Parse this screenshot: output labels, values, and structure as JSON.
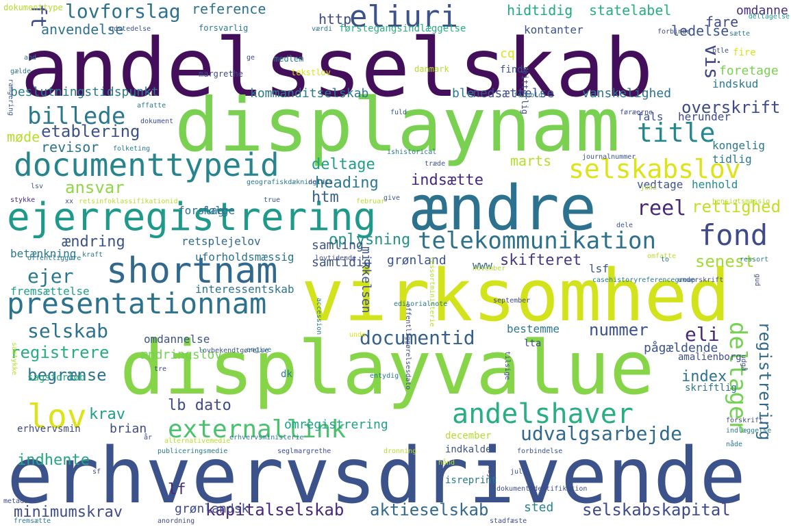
{
  "words": [
    {
      "text": "andelsselskab",
      "color": "#440f5a"
    },
    {
      "text": "displaynam",
      "color": "#7ad151"
    },
    {
      "text": "virksomhed",
      "color": "#d2e21b"
    },
    {
      "text": "displayvalue",
      "color": "#86d549"
    },
    {
      "text": "erhvervsdrivende",
      "color": "#3b528b"
    },
    {
      "text": "ændre",
      "color": "#2c728e"
    },
    {
      "text": "ejerregistrering",
      "color": "#1f9a8a"
    },
    {
      "text": "documenttypeid",
      "color": "#25848e"
    },
    {
      "text": "presentationnam",
      "color": "#2c718e"
    },
    {
      "text": "shortnam",
      "color": "#31688e"
    },
    {
      "text": "eliuri",
      "color": "#3b528b"
    },
    {
      "text": "selskabslov",
      "color": "#dde318"
    },
    {
      "text": "title",
      "color": "#23888e"
    },
    {
      "text": "fond",
      "color": "#3e4a89"
    },
    {
      "text": "telekommunikation",
      "color": "#2d708e"
    },
    {
      "text": "andelshaver",
      "color": "#28ae80"
    },
    {
      "text": "externallink",
      "color": "#4ac16d"
    },
    {
      "text": "lov",
      "color": "#dde318"
    },
    {
      "text": "billede",
      "color": "#2a788e"
    },
    {
      "text": "documentid",
      "color": "#355f8d"
    },
    {
      "text": "lovforslag",
      "color": "#2c728e"
    },
    {
      "text": "ft",
      "color": "#3e4a89"
    },
    {
      "text": "reel",
      "color": "#482878"
    },
    {
      "text": "deltager",
      "color": "#75d054"
    },
    {
      "text": "registrering",
      "color": "#31688e"
    },
    {
      "text": "udvalgsarbejde",
      "color": "#31688e"
    },
    {
      "text": "eli",
      "color": "#482878"
    },
    {
      "text": "vis",
      "color": "#414487"
    },
    {
      "text": "selskab",
      "color": "#2c728e"
    },
    {
      "text": "ejer",
      "color": "#2a788e"
    },
    {
      "text": "etablering",
      "color": "#3b528b"
    },
    {
      "text": "ansvar",
      "color": "#8fd744"
    },
    {
      "text": "begrænse",
      "color": "#2c728e"
    },
    {
      "text": "overskrift",
      "color": "#3e4a89"
    },
    {
      "text": "rettighed",
      "color": "#c2df23"
    },
    {
      "text": "senest",
      "color": "#a2da37"
    },
    {
      "text": "nummer",
      "color": "#3b528b"
    },
    {
      "text": "kapitalselskab",
      "color": "#482878"
    },
    {
      "text": "aktieselskab",
      "color": "#31688e"
    },
    {
      "text": "selskabskapital",
      "color": "#3e4a89"
    },
    {
      "text": "registrere",
      "color": "#27ad81"
    },
    {
      "text": "indhente",
      "color": "#22a785"
    },
    {
      "text": "krav",
      "color": "#1f9e89"
    },
    {
      "text": "lb dato",
      "color": "#3e4a89"
    },
    {
      "text": "lf",
      "color": "#482878"
    },
    {
      "text": "minimumskrav",
      "color": "#3e4a89"
    },
    {
      "text": "index",
      "color": "#2c728e"
    },
    {
      "text": "heading",
      "color": "#2a788e"
    },
    {
      "text": "indsætte",
      "color": "#482878"
    },
    {
      "text": "deltage",
      "color": "#1f9e89"
    },
    {
      "text": "oplysning",
      "color": "#20928c"
    },
    {
      "text": "ændring",
      "color": "#3b528b"
    },
    {
      "text": "skifteret",
      "color": "#443983"
    },
    {
      "text": "htm",
      "color": "#355f8d"
    },
    {
      "text": "hidtidig",
      "color": "#22a785"
    },
    {
      "text": "statelabel",
      "color": "#27ad81"
    },
    {
      "text": "fare",
      "color": "#3e4a89"
    },
    {
      "text": "reference",
      "color": "#2c728e"
    },
    {
      "text": "anvendelse",
      "color": "#2c728e"
    },
    {
      "text": "http",
      "color": "#3e4a89"
    },
    {
      "text": "ledelse",
      "color": "#3b528b"
    },
    {
      "text": "marts",
      "color": "#b5de2b"
    },
    {
      "text": "revisor",
      "color": "#2c728e"
    },
    {
      "text": "møde",
      "color": "#b5de2b"
    },
    {
      "text": "beslutningstidspunkt",
      "color": "#2a788e"
    },
    {
      "text": "kommanditselskab",
      "color": "#2a788e"
    },
    {
      "text": "ble",
      "color": "#2a788e"
    },
    {
      "text": "nedsættelse",
      "color": "#3b528b"
    },
    {
      "text": "vanskelighed",
      "color": "#2c728e"
    },
    {
      "text": "foretage",
      "color": "#7ad151"
    },
    {
      "text": "indskud",
      "color": "#2a788e"
    },
    {
      "text": "kontanter",
      "color": "#3b528b"
    },
    {
      "text": "omdanne",
      "color": "#472d7b"
    },
    {
      "text": "omdannelse",
      "color": "#3b528b"
    },
    {
      "text": "ændringslov",
      "color": "#75d054"
    },
    {
      "text": "omregistrering",
      "color": "#1fa188"
    },
    {
      "text": "brian",
      "color": "#3e4a89"
    },
    {
      "text": "grønlandsk",
      "color": "#3e4a89"
    },
    {
      "text": "sted",
      "color": "#25848e"
    },
    {
      "text": "samling",
      "color": "#3b528b"
    },
    {
      "text": "samtidig",
      "color": "#3b528b"
    },
    {
      "text": "grønland",
      "color": "#3b528b"
    },
    {
      "text": "mikkelsen",
      "color": "#3b528b"
    },
    {
      "text": "pågældende",
      "color": "#3b528b"
    },
    {
      "text": "forslag",
      "color": "#2c728e"
    },
    {
      "text": "følge",
      "color": "#2c728e"
    },
    {
      "text": "retsplejelov",
      "color": "#31688e"
    },
    {
      "text": "uforholdsmæssig",
      "color": "#2c728e"
    },
    {
      "text": "interessentskab",
      "color": "#2c728e"
    },
    {
      "text": "fremsættelse",
      "color": "#1f9e89"
    },
    {
      "text": "betænkning",
      "color": "#2a788e"
    },
    {
      "text": "henhold",
      "color": "#23898e"
    },
    {
      "text": "vedtage",
      "color": "#3b528b"
    },
    {
      "text": "kongelig",
      "color": "#2a788e"
    },
    {
      "text": "tidlig",
      "color": "#2a788e"
    },
    {
      "text": "herunder",
      "color": "#3e4a89"
    },
    {
      "text": "fals",
      "color": "#3b528b"
    },
    {
      "text": "lsf",
      "color": "#3b528b"
    },
    {
      "text": "www",
      "color": "#355f8d"
    },
    {
      "text": "bestemme",
      "color": "#2a788e"
    },
    {
      "text": "dk",
      "color": "#2a788e"
    },
    {
      "text": "erhvervsmin",
      "color": "#3e4a89"
    },
    {
      "text": "sagsforløb",
      "color": "#27ad81"
    },
    {
      "text": "december",
      "color": "#b5de2b"
    },
    {
      "text": "indkalde",
      "color": "#3b528b"
    },
    {
      "text": "isreprint",
      "color": "#2a788e"
    },
    {
      "text": "skriftlig",
      "color": "#2c728e"
    },
    {
      "text": "amalienborg",
      "color": "#3e4a89"
    },
    {
      "text": "lta",
      "color": "#3e4a89"
    },
    {
      "text": "finde",
      "color": "#3b528b"
    },
    {
      "text": "medlem",
      "color": "#2a788e"
    },
    {
      "text": "forsvarlig",
      "color": "#2a788e"
    },
    {
      "text": "førstegangsindlæggelse",
      "color": "#27ad81"
    },
    {
      "text": "udstedelse",
      "color": "#3b528b"
    },
    {
      "text": "forbinde",
      "color": "#3e4a89"
    },
    {
      "text": "btle",
      "color": "#3e4a89"
    },
    {
      "text": "dokumenttype",
      "color": "#b5de2b"
    },
    {
      "text": "værdi",
      "color": "#2a788e"
    },
    {
      "text": "deltagelse",
      "color": "#1f9e89"
    },
    {
      "text": "sætte",
      "color": "#2a788e"
    },
    {
      "text": "cq",
      "color": "#dde318"
    },
    {
      "text": "fire",
      "color": "#dde318"
    },
    {
      "text": "margrethe",
      "color": "#3e4a89"
    },
    {
      "text": "danmark",
      "color": "#b5de2b"
    },
    {
      "text": "tekstlov",
      "color": "#dde318"
    },
    {
      "text": "vitterlig",
      "color": "#3e4a89"
    },
    {
      "text": "ge",
      "color": "#3e4a89"
    },
    {
      "text": "and",
      "color": "#2a788e"
    },
    {
      "text": "gælde",
      "color": "#2a788e"
    },
    {
      "text": "rangering",
      "color": "#3b528b"
    },
    {
      "text": "forhold",
      "color": "#2a788e"
    },
    {
      "text": "affatte",
      "color": "#2a788e"
    },
    {
      "text": "dokument",
      "color": "#3e4a89"
    },
    {
      "text": "fuld",
      "color": "#3b528b"
    },
    {
      "text": "føræerne",
      "color": "#3e4a89"
    },
    {
      "text": "folketing",
      "color": "#2a788e"
    },
    {
      "text": "ishistorical",
      "color": "#2a788e"
    },
    {
      "text": "journalnummer",
      "color": "#3b528b"
    },
    {
      "text": "træde",
      "color": "#3b528b"
    },
    {
      "text": "geografiskdækningid",
      "color": "#2a788e"
    },
    {
      "text": "delvis",
      "color": "#3b528b"
    },
    {
      "text": "juni",
      "color": "#b5de2b"
    },
    {
      "text": "stykke",
      "color": "#482878"
    },
    {
      "text": "xx",
      "color": "#3e4a89"
    },
    {
      "text": "retsinfoklassifikationid",
      "color": "#b5de2b"
    },
    {
      "text": "true",
      "color": "#3b528b"
    },
    {
      "text": "februar",
      "color": "#b5de2b"
    },
    {
      "text": "give",
      "color": "#3b528b"
    },
    {
      "text": "lsv",
      "color": "#3b528b"
    },
    {
      "text": "hensigtsmæssig",
      "color": "#b5de2b"
    },
    {
      "text": "dele",
      "color": "#3b528b"
    },
    {
      "text": "kraft",
      "color": "#2a788e"
    },
    {
      "text": "offentliggøre",
      "color": "#2a788e"
    },
    {
      "text": "lovtidende",
      "color": "#3e4a89"
    },
    {
      "text": "november",
      "color": "#b5de2b"
    },
    {
      "text": "omfatte",
      "color": "#b5de2b"
    },
    {
      "text": "ressort",
      "color": "#2a788e"
    },
    {
      "text": "to",
      "color": "#2a788e"
    },
    {
      "text": "ressortministerie",
      "color": "#b5de2b"
    },
    {
      "text": "casehistoryreferencegroup",
      "color": "#2a788e"
    },
    {
      "text": "underskrift",
      "color": "#3e4a89"
    },
    {
      "text": "gud",
      "color": "#3e4a89"
    },
    {
      "text": "september",
      "color": "#3e4a89"
    },
    {
      "text": "accession",
      "color": "#2a788e"
    },
    {
      "text": "editorialnote",
      "color": "#2a788e"
    },
    {
      "text": "offentliggørelsesdato",
      "color": "#3e4a89"
    },
    {
      "text": "unde",
      "color": "#dde318"
    },
    {
      "text": "angive",
      "color": "#2a788e"
    },
    {
      "text": "lovbekendtgørelse",
      "color": "#3b528b"
    },
    {
      "text": "tre",
      "color": "#3e4a89"
    },
    {
      "text": "samtykke",
      "color": "#b5de2b"
    },
    {
      "text": "entydig",
      "color": "#2a788e"
    },
    {
      "text": "tilsige",
      "color": "#3e4a89"
    },
    {
      "text": "udgå",
      "color": "#3e4a89"
    },
    {
      "text": "forskrift",
      "color": "#3e4a89"
    },
    {
      "text": "indlæggelse",
      "color": "#2a788e"
    },
    {
      "text": "nåde",
      "color": "#2a788e"
    },
    {
      "text": "år",
      "color": "#3e4a89"
    },
    {
      "text": "erhvervsministerie",
      "color": "#2a788e"
    },
    {
      "text": "alternativemedie",
      "color": "#b5de2b"
    },
    {
      "text": "publiceringsmedie",
      "color": "#2a788e"
    },
    {
      "text": "seglmargrethe",
      "color": "#3e4a89"
    },
    {
      "text": "dronning",
      "color": "#b5de2b"
    },
    {
      "text": "forbindelse",
      "color": "#3b528b"
    },
    {
      "text": "hånd",
      "color": "#b5de2b"
    },
    {
      "text": "maj",
      "color": "#3e4a89"
    },
    {
      "text": "juli",
      "color": "#3b528b"
    },
    {
      "text": "sf",
      "color": "#3e4a89"
    },
    {
      "text": "dokumentidentifikation",
      "color": "#3e4a89"
    },
    {
      "text": "metadata",
      "color": "#3e4a89"
    },
    {
      "text": "fremsætte",
      "color": "#2a788e"
    },
    {
      "text": "anordning",
      "color": "#3e4a89"
    },
    {
      "text": "stadfæste",
      "color": "#3e4a89"
    }
  ]
}
